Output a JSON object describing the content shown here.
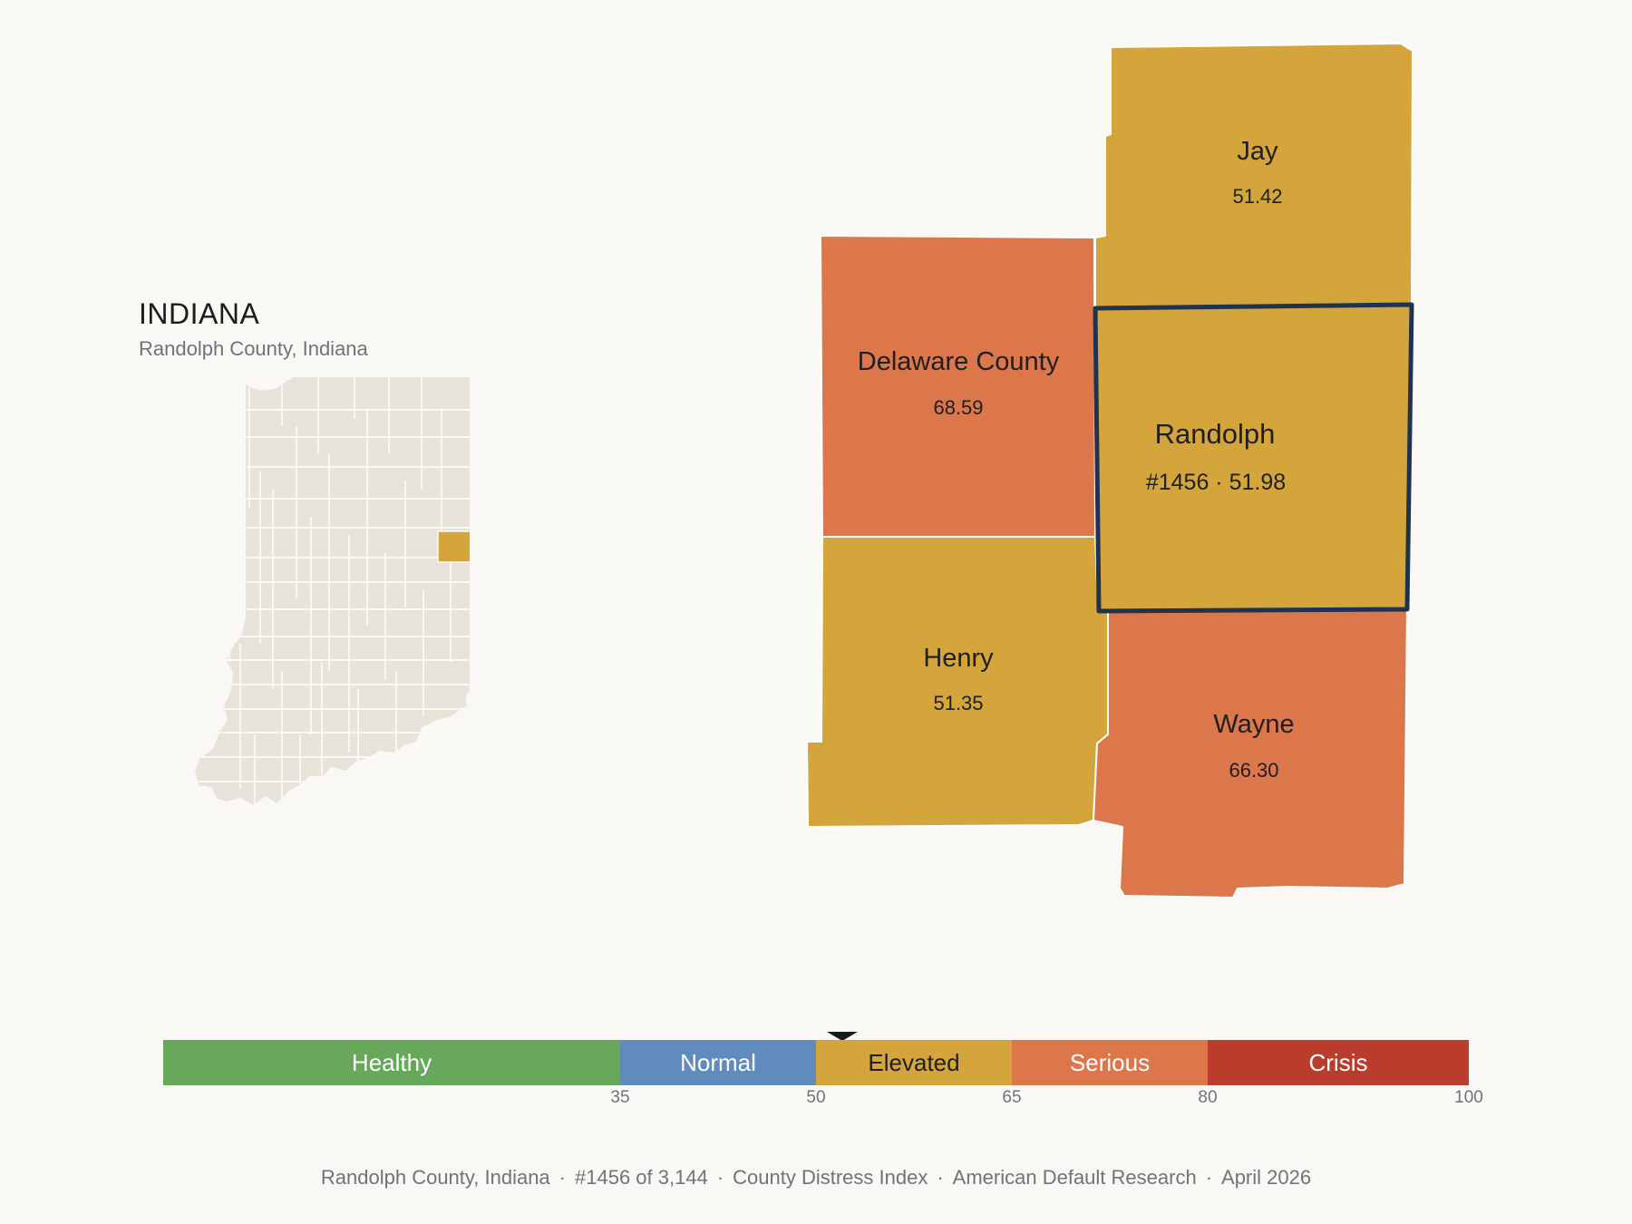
{
  "inset": {
    "title": "INDIANA",
    "subtitle": "Randolph County, Indiana",
    "base_color": "#e8e3d9",
    "highlight_color": "#d3a53b"
  },
  "counties": {
    "jay": {
      "name": "Jay",
      "value": "51.42",
      "color": "#d3a53b"
    },
    "delaware": {
      "name": "Delaware County",
      "value": "68.59",
      "color": "#db774b"
    },
    "randolph": {
      "name": "Randolph",
      "value": "#1456 · 51.98",
      "color": "#d3a53b",
      "outline": "#1f3350"
    },
    "henry": {
      "name": "Henry",
      "value": "51.35",
      "color": "#d3a53b"
    },
    "wayne": {
      "name": "Wayne",
      "value": "66.30",
      "color": "#db774b"
    }
  },
  "legend": {
    "segments": [
      {
        "label": "Healthy",
        "from": 0,
        "to": 35,
        "color": "#67a85a",
        "text_color": "#ffffff"
      },
      {
        "label": "Normal",
        "from": 35,
        "to": 50,
        "color": "#5f8cbc",
        "text_color": "#ffffff"
      },
      {
        "label": "Elevated",
        "from": 50,
        "to": 65,
        "color": "#d3a53b",
        "text_color": "#1f1f1f"
      },
      {
        "label": "Serious",
        "from": 65,
        "to": 80,
        "color": "#db774b",
        "text_color": "#ffffff"
      },
      {
        "label": "Crisis",
        "from": 80,
        "to": 100,
        "color": "#b93c2c",
        "text_color": "#ffffff"
      }
    ],
    "ticks": [
      "35",
      "50",
      "65",
      "80",
      "100"
    ],
    "marker_value": 51.98
  },
  "footer": {
    "location": "Randolph County, Indiana",
    "rank": "#1456 of 3,144",
    "index_name": "County Distress Index",
    "source": "American Default Research",
    "date": "April 2026",
    "separator": "·"
  }
}
